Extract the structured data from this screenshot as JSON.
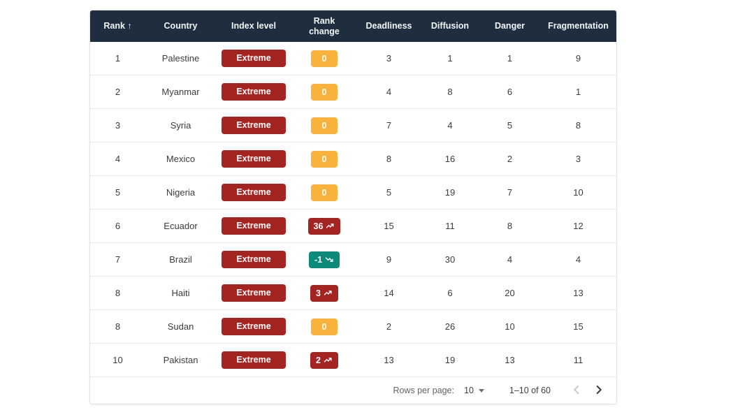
{
  "colors": {
    "header_bg": "#1f2e3e",
    "extreme_badge": "#a42422",
    "rank_up_badge": "#a42422",
    "rank_down_badge": "#0e8a7a",
    "rank_same_badge": "#f9b23c",
    "row_divider": "#ececec"
  },
  "icons": {
    "sort_ascending": "↑"
  },
  "table": {
    "columns": [
      {
        "key": "rank",
        "label": "Rank",
        "sorted": "asc"
      },
      {
        "key": "country",
        "label": "Country"
      },
      {
        "key": "index_level",
        "label": "Index level"
      },
      {
        "key": "rank_change",
        "label": "Rank change"
      },
      {
        "key": "deadliness",
        "label": "Deadliness"
      },
      {
        "key": "diffusion",
        "label": "Diffusion"
      },
      {
        "key": "danger",
        "label": "Danger"
      },
      {
        "key": "fragmentation",
        "label": "Fragmentation"
      }
    ],
    "rows": [
      {
        "rank": "1",
        "country": "Palestine",
        "index_level": "Extreme",
        "rank_change": {
          "value": "0",
          "direction": "none"
        },
        "deadliness": "3",
        "diffusion": "1",
        "danger": "1",
        "fragmentation": "9"
      },
      {
        "rank": "2",
        "country": "Myanmar",
        "index_level": "Extreme",
        "rank_change": {
          "value": "0",
          "direction": "none"
        },
        "deadliness": "4",
        "diffusion": "8",
        "danger": "6",
        "fragmentation": "1"
      },
      {
        "rank": "3",
        "country": "Syria",
        "index_level": "Extreme",
        "rank_change": {
          "value": "0",
          "direction": "none"
        },
        "deadliness": "7",
        "diffusion": "4",
        "danger": "5",
        "fragmentation": "8"
      },
      {
        "rank": "4",
        "country": "Mexico",
        "index_level": "Extreme",
        "rank_change": {
          "value": "0",
          "direction": "none"
        },
        "deadliness": "8",
        "diffusion": "16",
        "danger": "2",
        "fragmentation": "3"
      },
      {
        "rank": "5",
        "country": "Nigeria",
        "index_level": "Extreme",
        "rank_change": {
          "value": "0",
          "direction": "none"
        },
        "deadliness": "5",
        "diffusion": "19",
        "danger": "7",
        "fragmentation": "10"
      },
      {
        "rank": "6",
        "country": "Ecuador",
        "index_level": "Extreme",
        "rank_change": {
          "value": "36",
          "direction": "up"
        },
        "deadliness": "15",
        "diffusion": "11",
        "danger": "8",
        "fragmentation": "12"
      },
      {
        "rank": "7",
        "country": "Brazil",
        "index_level": "Extreme",
        "rank_change": {
          "value": "-1",
          "direction": "down"
        },
        "deadliness": "9",
        "diffusion": "30",
        "danger": "4",
        "fragmentation": "4"
      },
      {
        "rank": "8",
        "country": "Haiti",
        "index_level": "Extreme",
        "rank_change": {
          "value": "3",
          "direction": "up"
        },
        "deadliness": "14",
        "diffusion": "6",
        "danger": "20",
        "fragmentation": "13"
      },
      {
        "rank": "8",
        "country": "Sudan",
        "index_level": "Extreme",
        "rank_change": {
          "value": "0",
          "direction": "none"
        },
        "deadliness": "2",
        "diffusion": "26",
        "danger": "10",
        "fragmentation": "15"
      },
      {
        "rank": "10",
        "country": "Pakistan",
        "index_level": "Extreme",
        "rank_change": {
          "value": "2",
          "direction": "up"
        },
        "deadliness": "13",
        "diffusion": "19",
        "danger": "13",
        "fragmentation": "11"
      }
    ]
  },
  "pagination": {
    "rows_per_page_label": "Rows per page:",
    "rows_per_page_value": "10",
    "range_label": "1–10 of 60"
  }
}
